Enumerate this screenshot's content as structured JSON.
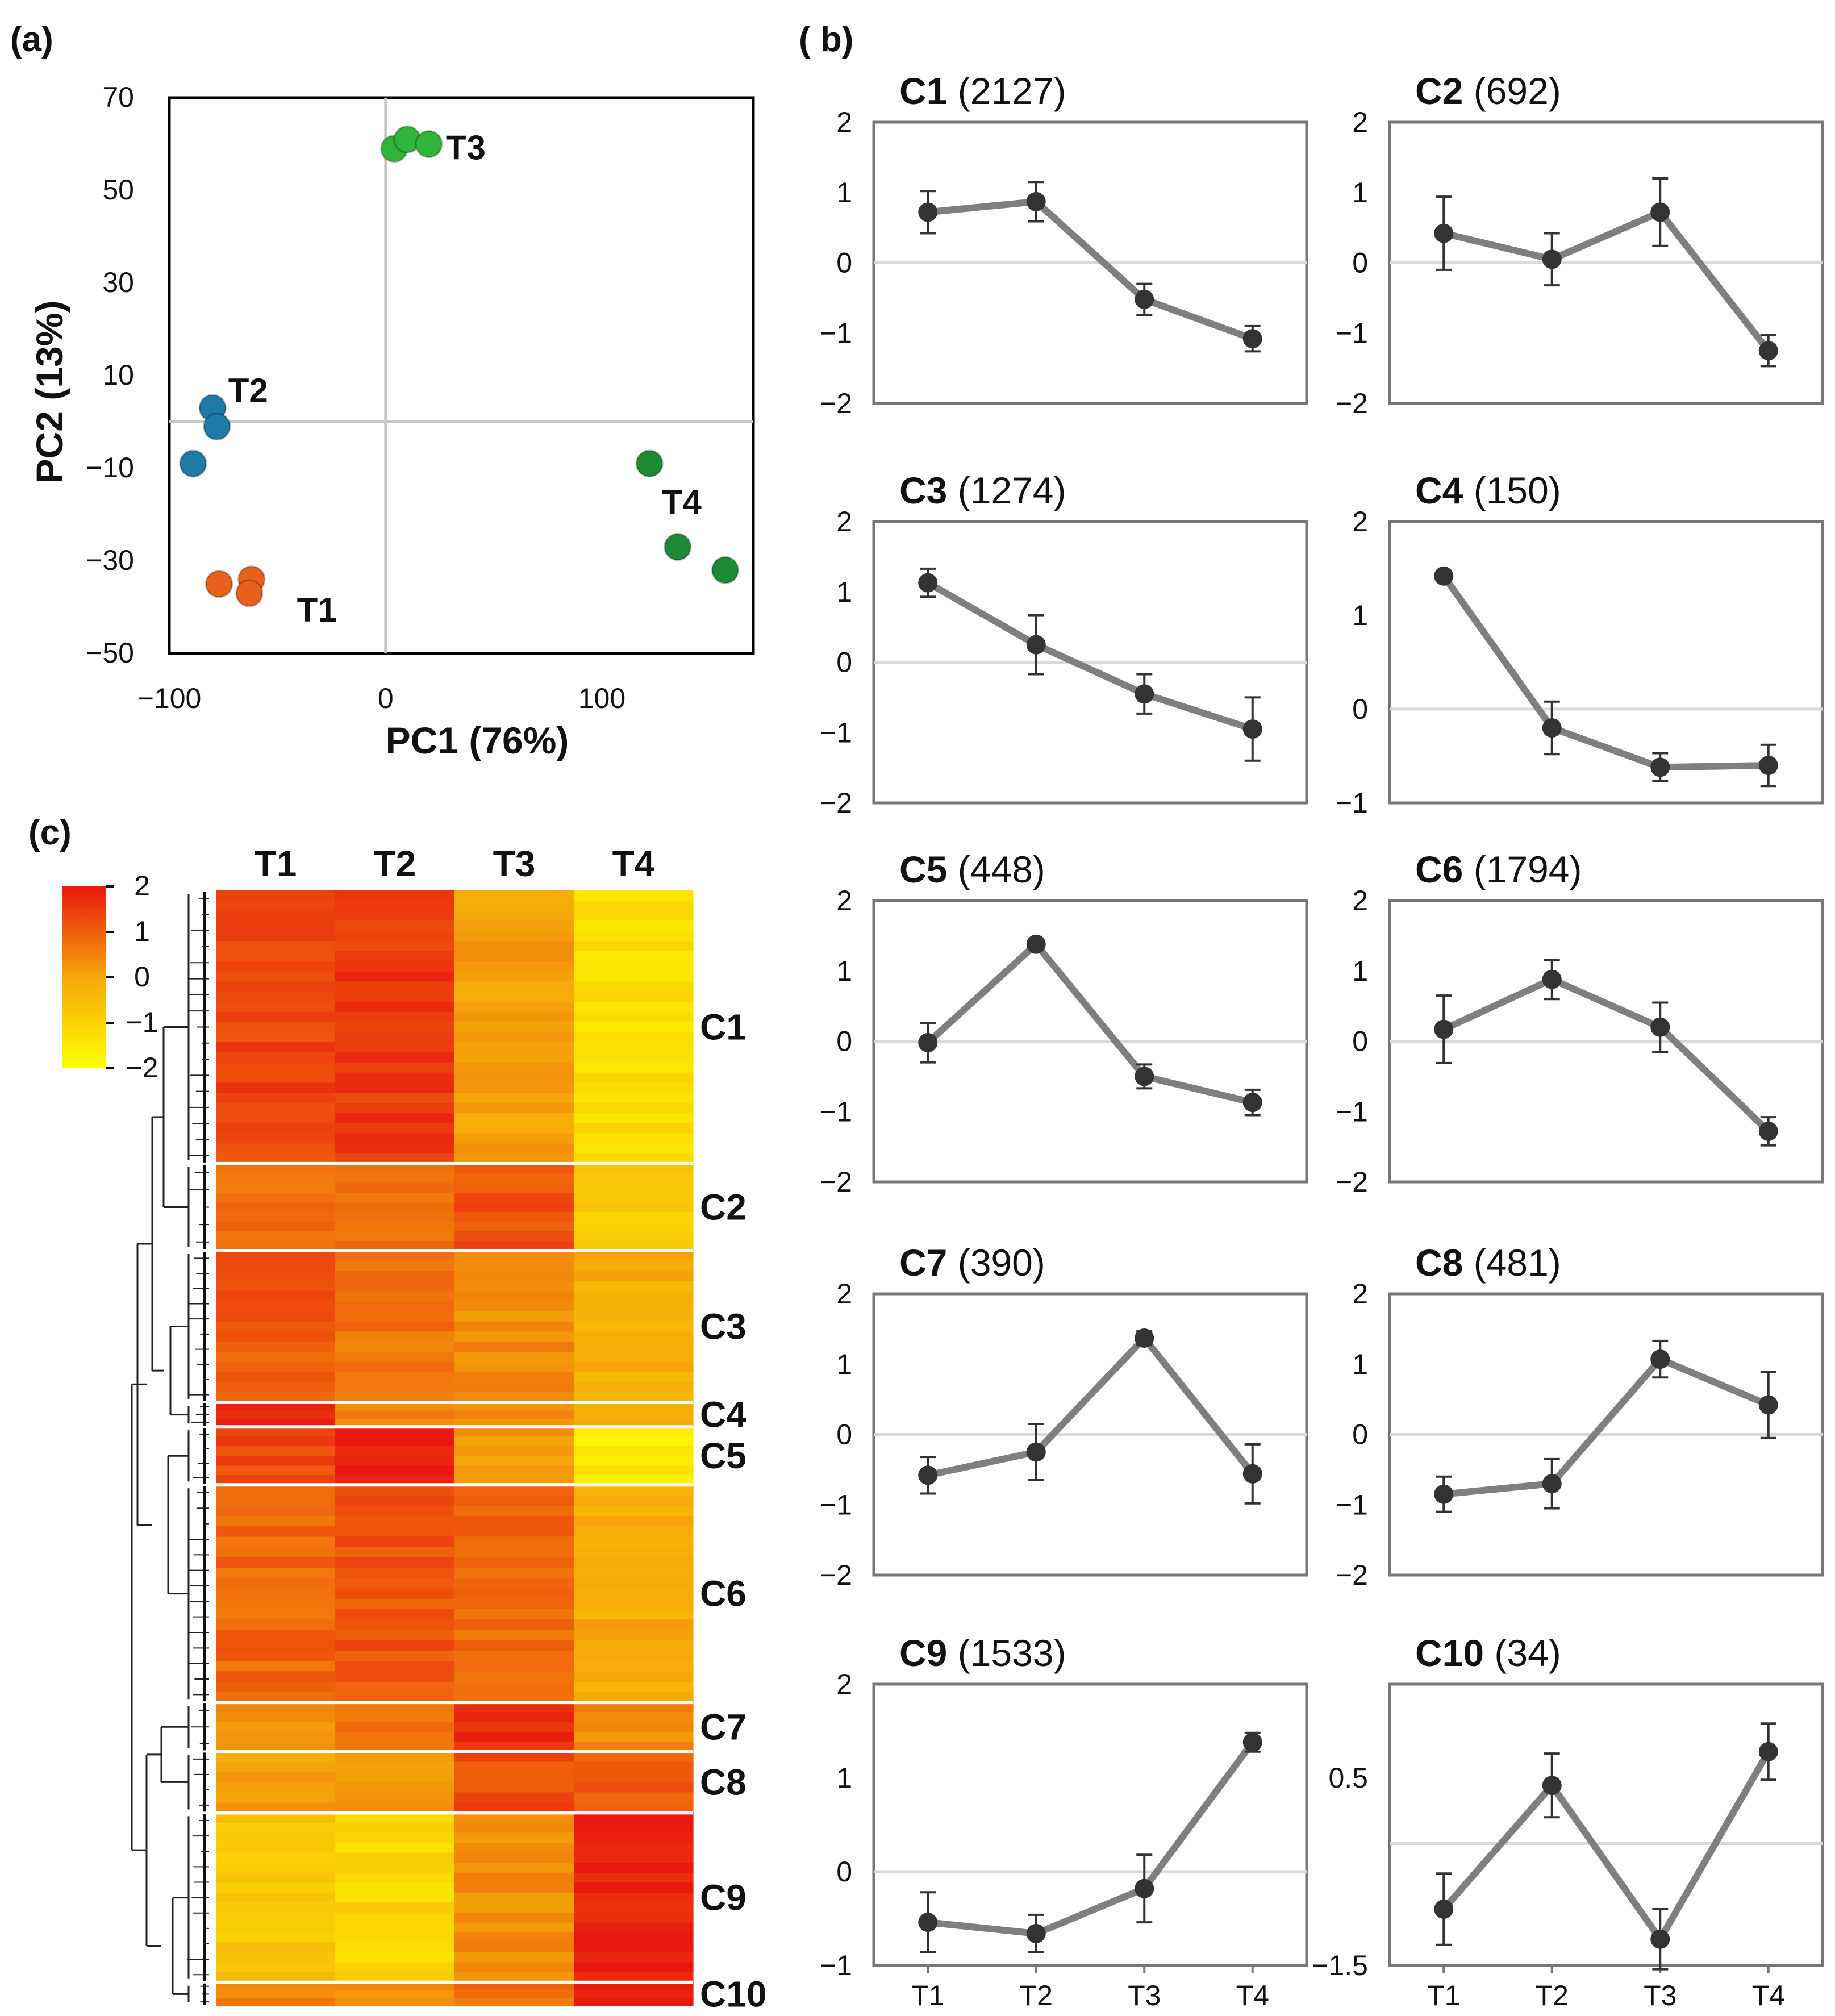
{
  "panels": {
    "a": "(a)",
    "b": "( b)",
    "c": "(c)"
  },
  "colors": {
    "T1": "#e8601c",
    "T2": "#1f7aa8",
    "T3": "#2fb53a",
    "T4": "#1f8a35",
    "line": "#7f7f7f",
    "marker": "#333333",
    "frame": "#777777",
    "zero": "#d9d9d9"
  },
  "chart_data": [
    {
      "id": "pca",
      "type": "scatter",
      "title": "",
      "xlabel": "PC1 (76%)",
      "ylabel": "PC2 (13%)",
      "xlim": [
        -100,
        170
      ],
      "ylim": [
        -50,
        70
      ],
      "xticks": [
        "−100",
        "0",
        "100"
      ],
      "xtick_values": [
        -100,
        0,
        100
      ],
      "yticks": [
        "70",
        "50",
        "30",
        "10",
        "−10",
        "−30",
        "−50"
      ],
      "ytick_values": [
        70,
        50,
        30,
        10,
        -10,
        -30,
        -50
      ],
      "groups": [
        {
          "name": "T1",
          "color": "#e8601c",
          "points": [
            [
              -77,
              -35
            ],
            [
              -62,
              -34
            ],
            [
              -63,
              -37
            ]
          ]
        },
        {
          "name": "T2",
          "color": "#1f7aa8",
          "points": [
            [
              -80,
              3
            ],
            [
              -78,
              -1
            ],
            [
              -89,
              -9
            ]
          ]
        },
        {
          "name": "T3",
          "color": "#2fb53a",
          "points": [
            [
              4,
              59
            ],
            [
              10,
              61
            ],
            [
              20,
              60
            ]
          ]
        },
        {
          "name": "T4",
          "color": "#1f8a35",
          "points": [
            [
              122,
              -9
            ],
            [
              135,
              -27
            ],
            [
              157,
              -32
            ]
          ]
        }
      ]
    },
    {
      "id": "profiles",
      "type": "line",
      "categories": [
        "T1",
        "T2",
        "T3",
        "T4"
      ],
      "panels": [
        {
          "cluster": "C1",
          "count": "(2127)",
          "ylim": [
            -2,
            2
          ],
          "yticks": [
            "2",
            "1",
            "0",
            "−1",
            "−2"
          ],
          "ytick_values": [
            2,
            1,
            0,
            -1,
            -2
          ],
          "values": [
            0.72,
            0.87,
            -0.52,
            -1.08
          ],
          "errors": [
            0.3,
            0.28,
            0.22,
            0.18
          ]
        },
        {
          "cluster": "C2",
          "count": "(692)",
          "ylim": [
            -2,
            2
          ],
          "yticks": [
            "2",
            "1",
            "0",
            "−1",
            "−2"
          ],
          "ytick_values": [
            2,
            1,
            0,
            -1,
            -2
          ],
          "values": [
            0.42,
            0.05,
            0.72,
            -1.25
          ],
          "errors": [
            0.52,
            0.37,
            0.48,
            0.22
          ]
        },
        {
          "cluster": "C3",
          "count": "(1274)",
          "ylim": [
            -2,
            2
          ],
          "yticks": [
            "2",
            "1",
            "0",
            "−1",
            "−2"
          ],
          "ytick_values": [
            2,
            1,
            0,
            -1,
            -2
          ],
          "values": [
            1.13,
            0.25,
            -0.45,
            -0.95
          ],
          "errors": [
            0.2,
            0.42,
            0.28,
            0.45
          ]
        },
        {
          "cluster": "C4",
          "count": "(150)",
          "ylim": [
            -1,
            2
          ],
          "yticks": [
            "2",
            "1",
            "0",
            "−1"
          ],
          "ytick_values": [
            2,
            1,
            0,
            -1
          ],
          "values": [
            1.42,
            -0.2,
            -0.62,
            -0.6
          ],
          "errors": [
            0.05,
            0.28,
            0.15,
            0.22
          ]
        },
        {
          "cluster": "C5",
          "count": "(448)",
          "ylim": [
            -2,
            2
          ],
          "yticks": [
            "2",
            "1",
            "0",
            "−1",
            "−2"
          ],
          "ytick_values": [
            2,
            1,
            0,
            -1,
            -2
          ],
          "values": [
            -0.02,
            1.38,
            -0.5,
            -0.87
          ],
          "errors": [
            0.28,
            0.04,
            0.17,
            0.18
          ]
        },
        {
          "cluster": "C6",
          "count": "(1794)",
          "ylim": [
            -2,
            2
          ],
          "yticks": [
            "2",
            "1",
            "0",
            "−1",
            "−2"
          ],
          "ytick_values": [
            2,
            1,
            0,
            -1,
            -2
          ],
          "values": [
            0.17,
            0.88,
            0.2,
            -1.28
          ],
          "errors": [
            0.48,
            0.28,
            0.35,
            0.2
          ]
        },
        {
          "cluster": "C7",
          "count": "(390)",
          "ylim": [
            -2,
            2
          ],
          "yticks": [
            "2",
            "1",
            "0",
            "−1",
            "−2"
          ],
          "ytick_values": [
            2,
            1,
            0,
            -1,
            -2
          ],
          "values": [
            -0.58,
            -0.25,
            1.37,
            -0.56
          ],
          "errors": [
            0.26,
            0.4,
            0.1,
            0.42
          ]
        },
        {
          "cluster": "C8",
          "count": "(481)",
          "ylim": [
            -2,
            2
          ],
          "yticks": [
            "2",
            "1",
            "0",
            "−1",
            "−2"
          ],
          "ytick_values": [
            2,
            1,
            0,
            -1,
            -2
          ],
          "values": [
            -0.85,
            -0.7,
            1.07,
            0.42
          ],
          "errors": [
            0.25,
            0.35,
            0.26,
            0.47
          ]
        },
        {
          "cluster": "C9",
          "count": "(1533)",
          "ylim": [
            -1,
            2
          ],
          "yticks": [
            "2",
            "1",
            "0",
            "−1"
          ],
          "ytick_values": [
            2,
            1,
            0,
            -1
          ],
          "values": [
            -0.54,
            -0.66,
            -0.18,
            1.38
          ],
          "errors": [
            0.32,
            0.2,
            0.36,
            0.1
          ]
        },
        {
          "cluster": "C10",
          "count": "(34)",
          "ylim": [
            -1.5,
            1.5
          ],
          "yticks": [
            "0.5",
            "−1.5"
          ],
          "ytick_values": [
            0.5,
            -1.5
          ],
          "zero_line": -0.2,
          "values": [
            -0.9,
            0.42,
            -1.22,
            0.78
          ],
          "errors": [
            0.38,
            0.34,
            0.32,
            0.3
          ]
        }
      ]
    },
    {
      "id": "heatmap",
      "type": "heatmap",
      "columns": [
        "T1",
        "T2",
        "T3",
        "T4"
      ],
      "legend": {
        "ticks": [
          "2",
          "1",
          "0",
          "−1",
          "−2"
        ],
        "tick_values": [
          2,
          1,
          0,
          -1,
          -2
        ],
        "colors": [
          "#e8180e",
          "#f5a70a",
          "#ffff00"
        ]
      },
      "clusters": [
        {
          "name": "C1",
          "mean": [
            1.4,
            1.55,
            0.1,
            -1.3
          ]
        },
        {
          "name": "C2",
          "mean": [
            0.8,
            0.9,
            1.2,
            -0.8
          ]
        },
        {
          "name": "C3",
          "mean": [
            1.1,
            0.7,
            0.4,
            -0.2
          ]
        },
        {
          "name": "C4",
          "mean": [
            1.9,
            0.5,
            0.3,
            0.1
          ]
        },
        {
          "name": "C5",
          "mean": [
            1.3,
            1.95,
            0.1,
            -1.5
          ]
        },
        {
          "name": "C6",
          "mean": [
            0.9,
            1.2,
            0.9,
            -0.1
          ]
        },
        {
          "name": "C7",
          "mean": [
            0.3,
            0.7,
            1.7,
            0.4
          ]
        },
        {
          "name": "C8",
          "mean": [
            0.1,
            0.2,
            1.3,
            1.1
          ]
        },
        {
          "name": "C9",
          "mean": [
            -0.7,
            -1.1,
            0.4,
            1.9
          ]
        },
        {
          "name": "C10",
          "mean": [
            0.5,
            0.3,
            0.7,
            1.8
          ]
        }
      ]
    }
  ]
}
